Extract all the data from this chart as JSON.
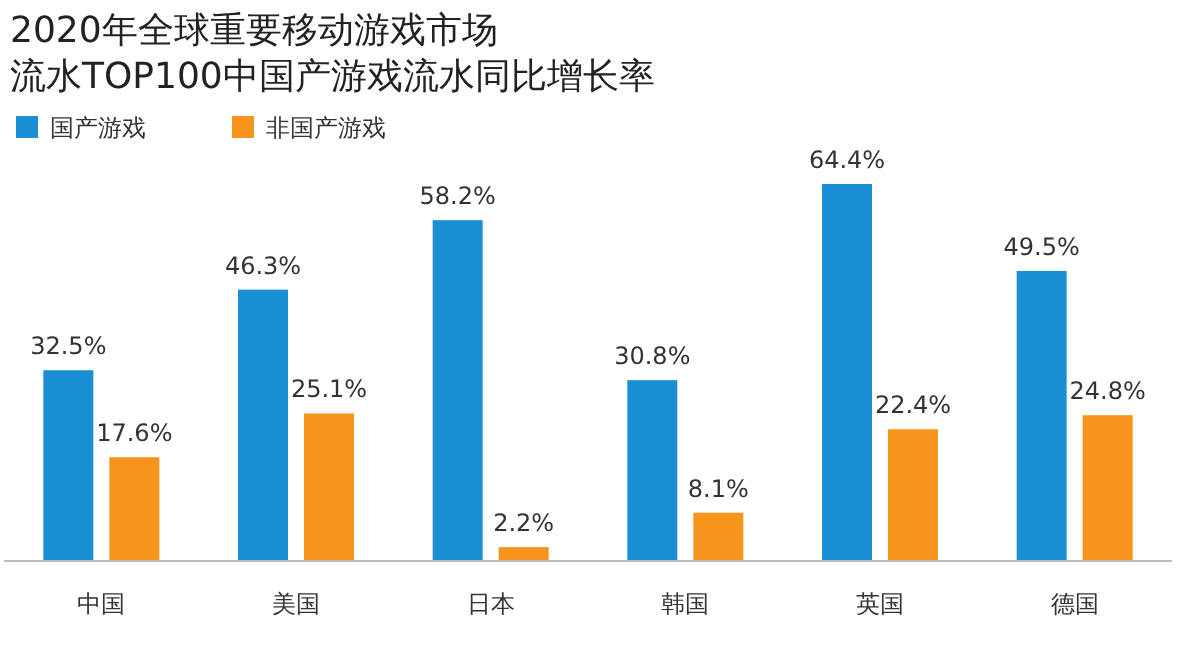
{
  "chart_data": {
    "type": "bar",
    "title": "2020年全球重要移动游戏市场",
    "subtitle": "流水TOP100中国产游戏流水同比增长率",
    "categories": [
      "中国",
      "美国",
      "日本",
      "韩国",
      "英国",
      "德国"
    ],
    "series": [
      {
        "name": "国产游戏",
        "color": "#1a8fd6",
        "values": [
          32.5,
          46.3,
          58.2,
          30.8,
          64.4,
          49.5
        ],
        "value_labels": [
          "32.5%",
          "46.3%",
          "58.2%",
          "30.8%",
          "64.4%",
          "49.5%"
        ]
      },
      {
        "name": "非国产游戏",
        "color": "#f7941d",
        "values": [
          17.6,
          25.1,
          2.2,
          8.1,
          22.4,
          24.8
        ],
        "value_labels": [
          "17.6%",
          "25.1%",
          "2.2%",
          "8.1%",
          "22.4%",
          "24.8%"
        ]
      }
    ],
    "legend": "top left"
  }
}
